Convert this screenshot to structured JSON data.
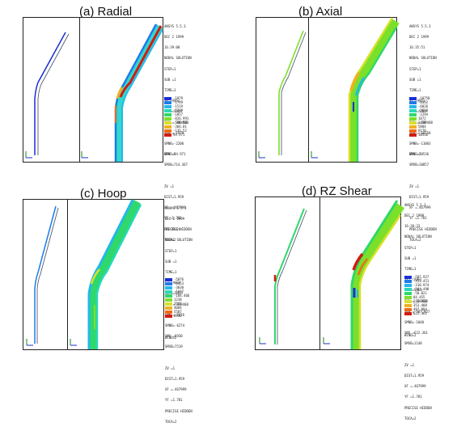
{
  "panels": [
    {
      "caption": "(a) Radial",
      "info": [
        "ANSYS 5.5.3",
        "DEC 2 1999",
        "16:39:08",
        "NODAL SOLUTION",
        "STEP=1",
        "SUB =1",
        "TIME=1",
        "SX (AVG)",
        "RSYS=SOLU",
        "DMX =.319408",
        "SMN =-1979",
        "SMNB=-2200",
        "SMX =94.971",
        "SMXB=714.367",
        "",
        "ZV =1",
        "DIST=1.959",
        "XF =.467999",
        "YF =1.781",
        "PRECISE HIDDEN",
        "TOCA=2"
      ],
      "legend": [
        "-1979",
        "-1749",
        "-1519",
        "-1289",
        "-1057",
        "-826.991",
        "-596.501",
        "-366.01",
        "-135.52",
        "94.971"
      ],
      "colors": [
        "#1a2fd6",
        "#1f7be8",
        "#25b8e8",
        "#29d8b8",
        "#2fd86a",
        "#7be02a",
        "#d8e02a",
        "#f0b020",
        "#f06a18",
        "#d41a10"
      ],
      "window": "WIND=2",
      "theme": "radial"
    },
    {
      "caption": "(b) Axial",
      "info": [
        "ANSYS 5.5.3",
        "DEC 2 1999",
        "16:35:51",
        "NODAL SOLUTION",
        "STEP=1",
        "SUB =1",
        "TIME=1",
        "SY (AVG)",
        "RSYS=SOLU",
        "DMX =.319408",
        "SMN =-10758",
        "SMNB=-11003",
        "SMX =10536",
        "SMXB=10857",
        "",
        "ZV =1",
        "DIST=1.959",
        "XF =.467999",
        "YF =1.781",
        "PRECISE HIDDEN",
        "TOCA=2"
      ],
      "legend": [
        "-10758",
        "-8392",
        "-6026",
        "-3660",
        "-1294",
        "1072",
        "3438",
        "5804",
        "8170",
        "10536"
      ],
      "colors": [
        "#1a2fd6",
        "#1f7be8",
        "#25b8e8",
        "#29d8b8",
        "#2fd86a",
        "#7be02a",
        "#d8e02a",
        "#f0b020",
        "#f06a18",
        "#d41a10"
      ],
      "window": "WIND=2",
      "theme": "axial"
    },
    {
      "caption": "(c) Hoop",
      "info": [
        "ANSYS 5.5.3",
        "DEC 2 1999",
        "16:39:24",
        "NODAL SOLUTION",
        "STEP=1",
        "SUB =1",
        "TIME=1",
        "SZ (AVG)",
        "RSYS=SOLU",
        "DMX =.319408",
        "SMN =-5876",
        "SMNB=-6274",
        "SMX =6930",
        "SMXB=7519",
        "",
        "ZV =1",
        "DIST=1.959",
        "XF =.467999",
        "YF =1.781",
        "PRECISE HIDDEN",
        "TOCA=2"
      ],
      "legend": [
        "-5876",
        "-4453",
        "-3030",
        "-1607",
        "-184.466",
        "1238",
        "2661",
        "4084",
        "5507",
        "6930"
      ],
      "colors": [
        "#1a2fd6",
        "#1f7be8",
        "#25b8e8",
        "#29d8b8",
        "#2fd86a",
        "#7be02a",
        "#d8e02a",
        "#f0b020",
        "#f06a18",
        "#d41a10"
      ],
      "window": "WIND=2",
      "theme": "hoop"
    },
    {
      "caption": "(d) RZ Shear",
      "info": [
        "ANSYS 5.5.3",
        "DEC 2 1999",
        "16:38:33",
        "NODAL SOLUTION",
        "STEP=1",
        "SUB =1",
        "TIME=1",
        "SXY (AVG)",
        "RSYS=SOLU",
        "DMX =.319408",
        "SMN =-587.927",
        "SMNB=-1040",
        "SMX =622.361",
        "SMXB=1148",
        "",
        "ZV =1",
        "DIST=1.959",
        "XF =.467999",
        "YF =1.781",
        "PRECISE HIDDEN",
        "TOCA=2"
      ],
      "legend": [
        "-587.927",
        "-453.451",
        "-318.974",
        "-184.498",
        "-50.021",
        "84.455",
        "218.931",
        "353.408",
        "487.884",
        "622.361"
      ],
      "colors": [
        "#1a2fd6",
        "#1f7be8",
        "#25b8e8",
        "#29d8b8",
        "#2fd86a",
        "#7be02a",
        "#d8e02a",
        "#f0b020",
        "#f06a18",
        "#d41a10"
      ],
      "window": "WIND=2",
      "theme": "shear"
    }
  ]
}
